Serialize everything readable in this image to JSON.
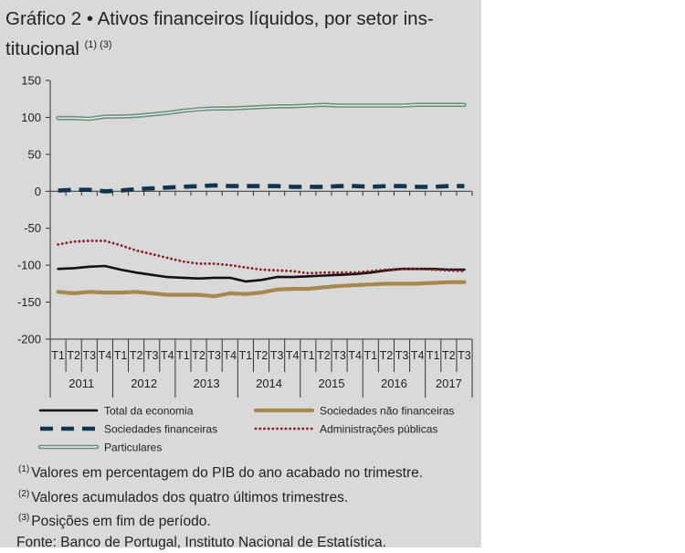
{
  "title": {
    "prefix": "Gráfico 2 •",
    "text": "Ativos financeiros líquidos, por setor ins-",
    "text_line2": "titucional",
    "refs": "(1) (3)"
  },
  "chart_data": {
    "type": "line",
    "ylim": [
      -200,
      150
    ],
    "yticks": [
      150,
      100,
      50,
      0,
      -50,
      -100,
      -150,
      -200
    ],
    "quarters": [
      "T1",
      "T2",
      "T3",
      "T4",
      "T1",
      "T2",
      "T3",
      "T4",
      "T1",
      "T2",
      "T3",
      "T4",
      "T1",
      "T2",
      "T3",
      "T4",
      "T1",
      "T2",
      "T3",
      "T4",
      "T1",
      "T2",
      "T3",
      "T4",
      "T1",
      "T2",
      "T3"
    ],
    "years": [
      "2011",
      "2012",
      "2013",
      "2014",
      "2015",
      "2016",
      "2017"
    ],
    "series": [
      {
        "name": "Total da economia",
        "key": "total",
        "color": "#111111",
        "values": [
          -105,
          -104,
          -102,
          -101,
          -106,
          -110,
          -113,
          -116,
          -117,
          -118,
          -117,
          -117,
          -122,
          -120,
          -116,
          -116,
          -115,
          -114,
          -113,
          -112,
          -110,
          -107,
          -105,
          -105,
          -105,
          -106,
          -106
        ]
      },
      {
        "name": "Sociedades não financeiras",
        "key": "snf",
        "color": "#a8874e",
        "values": [
          -136,
          -138,
          -136,
          -137,
          -137,
          -136,
          -138,
          -140,
          -140,
          -140,
          -142,
          -138,
          -139,
          -137,
          -133,
          -132,
          -132,
          -130,
          -128,
          -127,
          -126,
          -125,
          -125,
          -125,
          -124,
          -123,
          -123
        ]
      },
      {
        "name": "Sociedades financeiras",
        "key": "sf",
        "color": "#12354f",
        "values": [
          1,
          2,
          2,
          0,
          1,
          3,
          4,
          5,
          6,
          7,
          8,
          7,
          7,
          7,
          7,
          6,
          6,
          6,
          7,
          7,
          6,
          7,
          7,
          6,
          6,
          7,
          7
        ]
      },
      {
        "name": "Administrações públicas",
        "key": "ap",
        "color": "#8b1e2b",
        "values": [
          -72,
          -68,
          -67,
          -67,
          -73,
          -80,
          -85,
          -90,
          -95,
          -98,
          -98,
          -100,
          -103,
          -106,
          -107,
          -108,
          -111,
          -110,
          -110,
          -110,
          -108,
          -106,
          -105,
          -105,
          -106,
          -107,
          -108
        ]
      },
      {
        "name": "Particulares",
        "key": "part",
        "color": "#6d8f79",
        "values": [
          99,
          99,
          98,
          101,
          101,
          102,
          104,
          106,
          109,
          111,
          112,
          112,
          113,
          114,
          115,
          115,
          116,
          117,
          116,
          116,
          116,
          116,
          116,
          117,
          117,
          117,
          117
        ]
      }
    ]
  },
  "legend": {
    "total": "Total da economia",
    "snf": "Sociedades não financeiras",
    "sf": "Sociedades financeiras",
    "ap": "Administrações públicas",
    "part": "Particulares"
  },
  "notes": {
    "n1_mark": "(1)",
    "n1": "Valores em percentagem do PIB do ano acabado no trimestre.",
    "n2_mark": "(2)",
    "n2": "Valores acumulados dos quatro últimos trimestres.",
    "n3_mark": "(3)",
    "n3": "Posições em fim de período.",
    "source": "Fonte: Banco de Portugal, Instituto Nacional de Estatística."
  }
}
